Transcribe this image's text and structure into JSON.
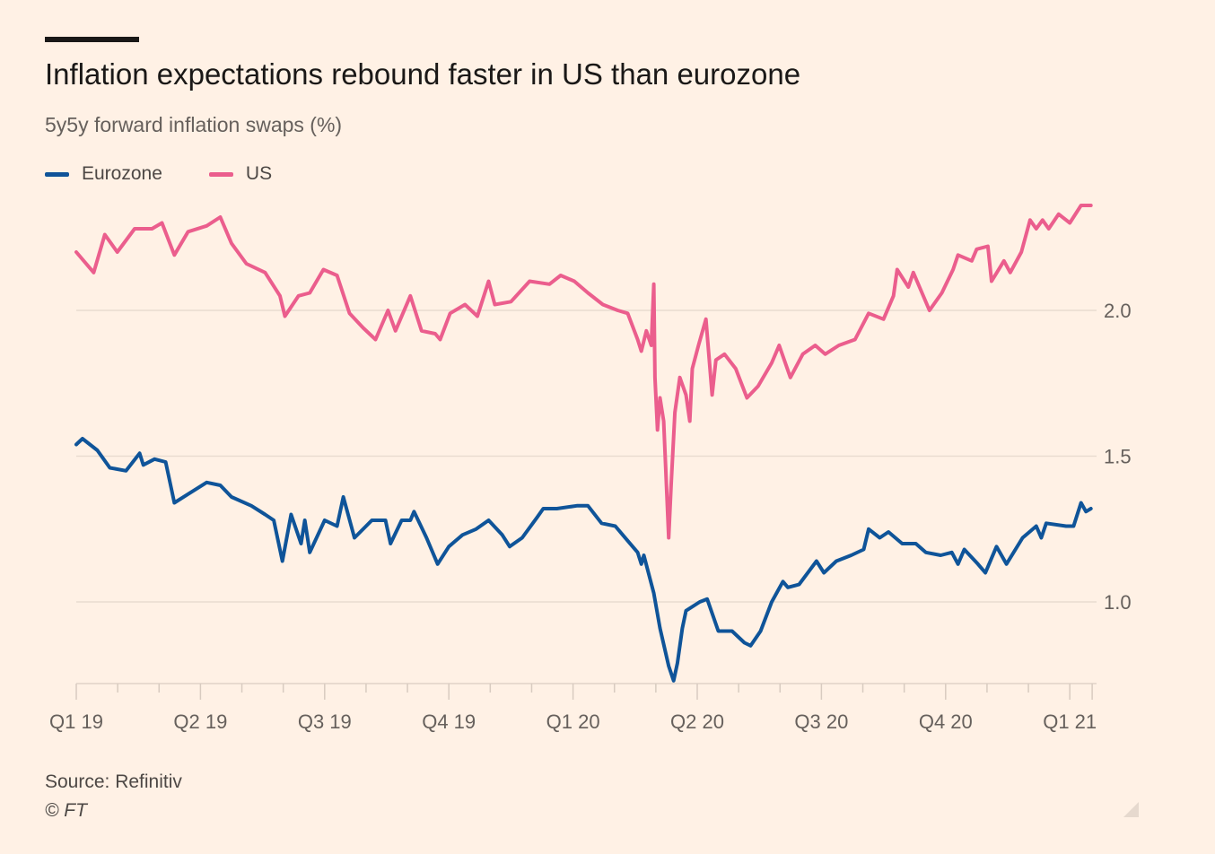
{
  "chart_data": {
    "type": "line",
    "title": "Inflation expectations rebound faster in US than eurozone",
    "subtitle": "5y5y forward inflation swaps (%)",
    "xlabel": "",
    "ylabel": "",
    "x_unit": "quarters since start of Q1 2019",
    "x_ticks": [
      {
        "x": 0,
        "label": "Q1 19"
      },
      {
        "x": 1,
        "label": "Q2 19"
      },
      {
        "x": 2,
        "label": "Q3 19"
      },
      {
        "x": 3,
        "label": "Q4 19"
      },
      {
        "x": 4,
        "label": "Q1 20"
      },
      {
        "x": 5,
        "label": "Q2 20"
      },
      {
        "x": 6,
        "label": "Q3 20"
      },
      {
        "x": 7,
        "label": "Q4 20"
      },
      {
        "x": 8,
        "label": "Q1 21"
      }
    ],
    "xlim": [
      0,
      8.18
    ],
    "y_ticks": [
      {
        "y": 1.0,
        "label": "1.0"
      },
      {
        "y": 1.5,
        "label": "1.5"
      },
      {
        "y": 2.0,
        "label": "2.0"
      }
    ],
    "ylim": [
      0.72,
      2.4
    ],
    "grid": true,
    "legend_position": "top-left",
    "series": [
      {
        "name": "Eurozone",
        "color": "#0f5499",
        "x": [
          0,
          0.05,
          0.17,
          0.27,
          0.4,
          0.51,
          0.54,
          0.63,
          0.72,
          0.79,
          0.9,
          1.05,
          1.16,
          1.25,
          1.41,
          1.52,
          1.59,
          1.66,
          1.73,
          1.81,
          1.84,
          1.88,
          2.0,
          2.1,
          2.15,
          2.24,
          2.38,
          2.49,
          2.53,
          2.62,
          2.69,
          2.72,
          2.82,
          2.91,
          3.0,
          3.11,
          3.22,
          3.32,
          3.43,
          3.49,
          3.59,
          3.71,
          3.76,
          3.87,
          4.03,
          4.12,
          4.23,
          4.34,
          4.44,
          4.52,
          4.55,
          4.57,
          4.65,
          4.7,
          4.77,
          4.81,
          4.84,
          4.88,
          4.91,
          5.02,
          5.08,
          5.17,
          5.28,
          5.38,
          5.43,
          5.51,
          5.6,
          5.69,
          5.73,
          5.82,
          5.96,
          6.02,
          6.12,
          6.24,
          6.34,
          6.38,
          6.47,
          6.54,
          6.65,
          6.76,
          6.84,
          6.96,
          7.05,
          7.1,
          7.15,
          7.26,
          7.32,
          7.41,
          7.49,
          7.62,
          7.73,
          7.77,
          7.81,
          7.97,
          8.03,
          8.09,
          8.13,
          8.17
        ],
        "values": [
          1.54,
          1.56,
          1.52,
          1.46,
          1.45,
          1.51,
          1.47,
          1.49,
          1.48,
          1.34,
          1.37,
          1.41,
          1.4,
          1.36,
          1.33,
          1.3,
          1.28,
          1.14,
          1.3,
          1.2,
          1.28,
          1.17,
          1.28,
          1.26,
          1.36,
          1.22,
          1.28,
          1.28,
          1.2,
          1.28,
          1.28,
          1.31,
          1.22,
          1.13,
          1.19,
          1.23,
          1.25,
          1.28,
          1.23,
          1.19,
          1.22,
          1.29,
          1.32,
          1.32,
          1.33,
          1.33,
          1.27,
          1.26,
          1.21,
          1.17,
          1.13,
          1.16,
          1.03,
          0.91,
          0.78,
          0.73,
          0.79,
          0.91,
          0.97,
          1.0,
          1.01,
          0.9,
          0.9,
          0.86,
          0.85,
          0.9,
          1.0,
          1.07,
          1.05,
          1.06,
          1.14,
          1.1,
          1.14,
          1.16,
          1.18,
          1.25,
          1.22,
          1.24,
          1.2,
          1.2,
          1.17,
          1.16,
          1.17,
          1.13,
          1.18,
          1.13,
          1.1,
          1.19,
          1.13,
          1.22,
          1.26,
          1.22,
          1.27,
          1.26,
          1.26,
          1.34,
          1.31,
          1.32
        ]
      },
      {
        "name": "US",
        "color": "#eb5e8d",
        "x": [
          0,
          0.14,
          0.23,
          0.33,
          0.47,
          0.61,
          0.69,
          0.79,
          0.9,
          1.05,
          1.16,
          1.25,
          1.37,
          1.52,
          1.64,
          1.68,
          1.79,
          1.88,
          1.99,
          2.1,
          2.2,
          2.31,
          2.41,
          2.51,
          2.57,
          2.69,
          2.78,
          2.89,
          2.93,
          3.01,
          3.13,
          3.23,
          3.32,
          3.37,
          3.5,
          3.65,
          3.81,
          3.9,
          4.01,
          4.12,
          4.24,
          4.36,
          4.44,
          4.52,
          4.55,
          4.59,
          4.63,
          4.65,
          4.66,
          4.68,
          4.7,
          4.73,
          4.77,
          4.79,
          4.82,
          4.86,
          4.91,
          4.94,
          4.96,
          5.01,
          5.07,
          5.12,
          5.15,
          5.22,
          5.31,
          5.4,
          5.49,
          5.6,
          5.66,
          5.75,
          5.85,
          5.95,
          6.03,
          6.14,
          6.27,
          6.38,
          6.5,
          6.58,
          6.61,
          6.7,
          6.74,
          6.87,
          6.97,
          7.06,
          7.1,
          7.21,
          7.25,
          7.34,
          7.37,
          7.47,
          7.52,
          7.61,
          7.68,
          7.73,
          7.78,
          7.83,
          7.91,
          8.0,
          8.09,
          8.17
        ],
        "values": [
          2.2,
          2.13,
          2.26,
          2.2,
          2.28,
          2.28,
          2.3,
          2.19,
          2.27,
          2.29,
          2.32,
          2.23,
          2.16,
          2.13,
          2.05,
          1.98,
          2.05,
          2.06,
          2.14,
          2.12,
          1.99,
          1.94,
          1.9,
          2.0,
          1.93,
          2.05,
          1.93,
          1.92,
          1.9,
          1.99,
          2.02,
          1.98,
          2.1,
          2.02,
          2.03,
          2.1,
          2.09,
          2.12,
          2.1,
          2.06,
          2.02,
          2.0,
          1.99,
          1.9,
          1.86,
          1.93,
          1.88,
          2.09,
          1.77,
          1.59,
          1.7,
          1.62,
          1.22,
          1.4,
          1.65,
          1.77,
          1.71,
          1.62,
          1.8,
          1.88,
          1.97,
          1.71,
          1.83,
          1.85,
          1.8,
          1.7,
          1.74,
          1.82,
          1.88,
          1.77,
          1.85,
          1.88,
          1.85,
          1.88,
          1.9,
          1.99,
          1.97,
          2.05,
          2.14,
          2.08,
          2.13,
          2.0,
          2.06,
          2.14,
          2.19,
          2.17,
          2.21,
          2.22,
          2.1,
          2.17,
          2.13,
          2.2,
          2.31,
          2.28,
          2.31,
          2.28,
          2.33,
          2.3,
          2.36,
          2.36
        ]
      }
    ]
  },
  "footer": {
    "source": "Source: Refinitiv",
    "copyright": "© FT"
  }
}
